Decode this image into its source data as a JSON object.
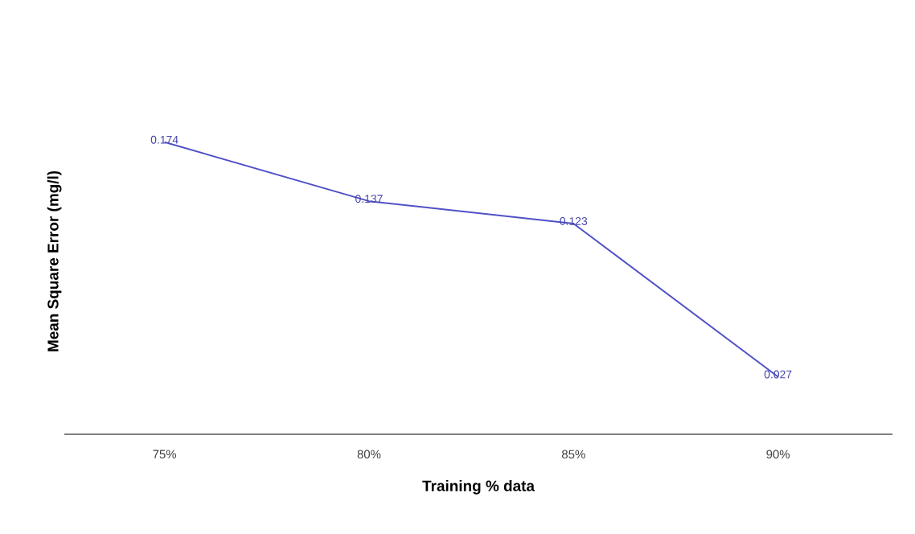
{
  "chart_data": {
    "type": "line",
    "xlabel": "Training % data",
    "ylabel": "Mean Square Error (mg/l)",
    "categories": [
      "75%",
      "80%",
      "85%",
      "90%"
    ],
    "values": [
      0.174,
      0.137,
      0.123,
      0.027
    ],
    "color": "#5050c8",
    "marker": "none",
    "data_labels": true
  }
}
